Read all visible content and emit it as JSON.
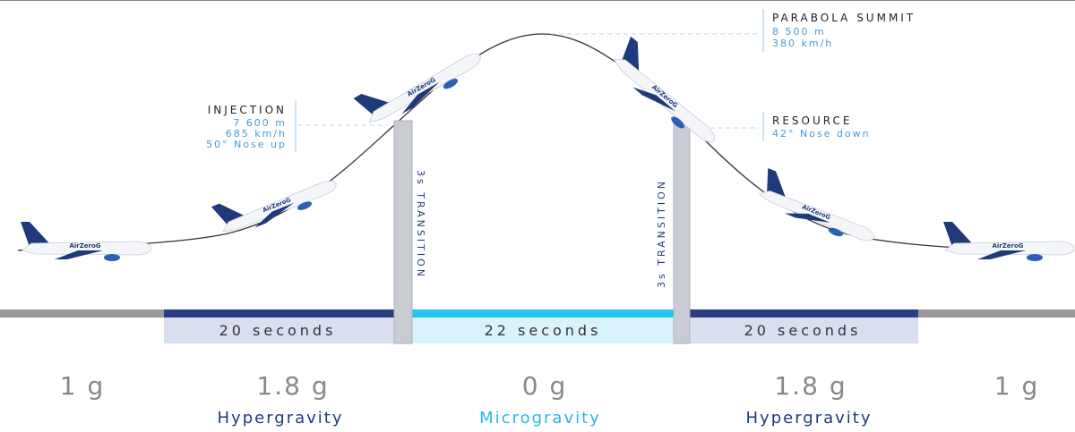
{
  "aircraft_logo": "AirZeroG",
  "annotations": {
    "summit": {
      "title": "PARABOLA SUMMIT",
      "lines": [
        "8 500 m",
        "380 km/h"
      ]
    },
    "injection": {
      "title": "INJECTION",
      "lines": [
        "7 600 m",
        "685 km/h",
        "50° Nose up"
      ]
    },
    "resource": {
      "title": "RESOURCE",
      "lines": [
        "42° Nose down"
      ]
    }
  },
  "transitions": [
    "3s TRANSITION",
    "3s TRANSITION"
  ],
  "phases": [
    "20 seconds",
    "22 seconds",
    "20 seconds"
  ],
  "g_levels": [
    "1 g",
    "1.8 g",
    "0 g",
    "1.8 g",
    "1 g"
  ],
  "gravity_names": [
    "Hypergravity",
    "Microgravity",
    "Hypergravity"
  ]
}
